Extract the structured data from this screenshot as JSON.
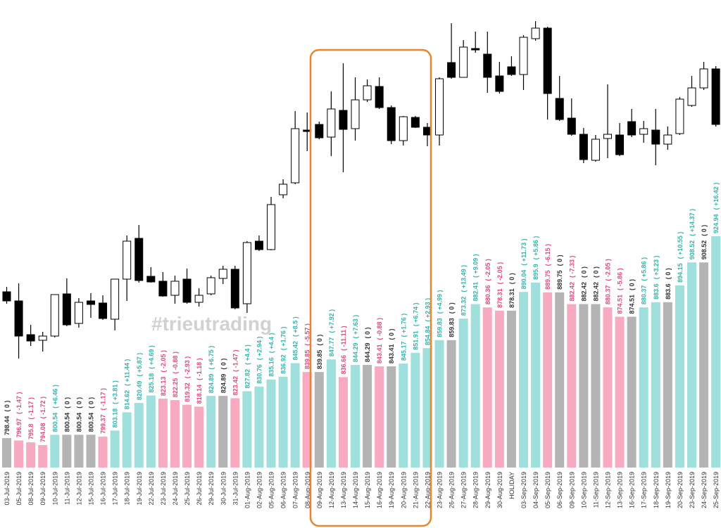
{
  "chart_data": [
    {
      "type": "candlestick",
      "ylim": [
        0,
        751
      ],
      "up_color": "#ffffff",
      "down_color": "#000000",
      "wick_color": "#000000",
      "open": [
        336,
        323,
        275,
        267,
        273,
        333,
        291,
        323,
        320,
        297,
        354,
        412,
        358,
        351,
        331,
        354,
        321,
        333,
        355,
        368,
        319,
        408,
        396,
        474,
        491,
        566,
        574,
        556,
        594,
        568,
        609,
        628,
        598,
        551,
        584,
        570,
        559,
        662,
        641,
        682,
        674,
        643,
        656,
        645,
        696,
        711,
        611,
        583,
        560,
        523,
        554,
        559,
        578,
        560,
        566,
        546,
        561,
        601,
        626,
        653
      ],
      "high": [
        343,
        348,
        289,
        279,
        332,
        355,
        327,
        334,
        331,
        354,
        416,
        431,
        371,
        364,
        359,
        369,
        341,
        359,
        373,
        373,
        408,
        416,
        471,
        496,
        593,
        591,
        578,
        621,
        661,
        641,
        638,
        641,
        601,
        586,
        586,
        576,
        641,
        718,
        694,
        706,
        706,
        663,
        671,
        701,
        721,
        713,
        643,
        611,
        569,
        559,
        631,
        576,
        596,
        579,
        596,
        571,
        613,
        643,
        663,
        657
      ],
      "low": [
        319,
        241,
        259,
        251,
        271,
        287,
        285,
        299,
        296,
        281,
        323,
        349,
        349,
        329,
        319,
        319,
        315,
        331,
        347,
        311,
        306,
        394,
        395,
        469,
        489,
        536,
        553,
        529,
        506,
        551,
        606,
        596,
        546,
        544,
        569,
        543,
        544,
        639,
        641,
        676,
        619,
        618,
        643,
        623,
        693,
        581,
        579,
        558,
        519,
        521,
        526,
        529,
        556,
        548,
        516,
        538,
        559,
        599,
        623,
        571
      ],
      "close": [
        323,
        273,
        266,
        273,
        332,
        289,
        321,
        318,
        298,
        354,
        408,
        352,
        350,
        330,
        351,
        321,
        331,
        356,
        368,
        313,
        406,
        396,
        460,
        489,
        568,
        564,
        555,
        596,
        567,
        609,
        629,
        598,
        551,
        585,
        570,
        559,
        639,
        641,
        684,
        680,
        641,
        621,
        645,
        698,
        711,
        618,
        581,
        560,
        524,
        553,
        560,
        531,
        559,
        568,
        546,
        559,
        610,
        626,
        653,
        574
      ]
    },
    {
      "type": "bar",
      "watermark": "#trieutrading",
      "ylim": [
        780,
        940
      ],
      "palette": {
        "up": "#9fe0dd",
        "down": "#f8abc0",
        "flat": "#b4b4b4"
      },
      "label_palette": {
        "up": "#36b3ac",
        "down": "#e14a78",
        "flat": "#333333"
      },
      "categories": [
        "03-Jul-2019",
        "05-Jul-2019",
        "08-Jul-2019",
        "09-Jul-2019",
        "10-Jul-2019",
        "11-Jul-2019",
        "12-Jul-2019",
        "15-Jul-2019",
        "16-Jul-2019",
        "17-Jul-2019",
        "18-Jul-2019",
        "19-Jul-2019",
        "22-Jul-2019",
        "23-Jul-2019",
        "24-Jul-2019",
        "25-Jul-2019",
        "26-Jul-2019",
        "29-Jul-2019",
        "30-Jul-2019",
        "31-Jul-2019",
        "01-Aug-2019",
        "02-Aug-2019",
        "05-Aug-2019",
        "06-Aug-2019",
        "07-Aug-2019",
        "08-Aug-2019",
        "09-Aug-2019",
        "12-Aug-2019",
        "13-Aug-2019",
        "14-Aug-2019",
        "15-Aug-2019",
        "16-Aug-2019",
        "19-Aug-2019",
        "20-Aug-2019",
        "21-Aug-2019",
        "22-Aug-2019",
        "23-Aug-2019",
        "26-Aug-2019",
        "27-Aug-2019",
        "28-Aug-2019",
        "29-Aug-2019",
        "30-Aug-2019",
        "HOLIDAY",
        "03-Sep-2019",
        "04-Sep-2019",
        "05-Sep-2019",
        "06-Sep-2019",
        "09-Sep-2019",
        "10-Sep-2019",
        "11-Sep-2019",
        "12-Sep-2019",
        "13-Sep-2019",
        "16-Sep-2019",
        "17-Sep-2019",
        "18-Sep-2019",
        "19-Sep-2019",
        "20-Sep-2019",
        "23-Sep-2019",
        "24-Sep-2019",
        "25-Sep-2019"
      ],
      "values": [
        798.44,
        796.97,
        795.8,
        794.08,
        800.54,
        800.54,
        800.54,
        800.54,
        799.37,
        803.18,
        814.62,
        820.49,
        825.18,
        823.13,
        822.25,
        819.32,
        818.14,
        824.89,
        824.89,
        823.42,
        827.82,
        830.76,
        835.16,
        836.92,
        845.42,
        839.85,
        839.85,
        847.77,
        836.66,
        844.29,
        844.29,
        843.41,
        843.41,
        845.17,
        851.91,
        854.84,
        859.83,
        859.83,
        873.32,
        882.41,
        880.36,
        878.31,
        878.31,
        890.04,
        895.9,
        889.75,
        889.75,
        882.42,
        882.42,
        882.42,
        880.37,
        874.51,
        874.51,
        880.37,
        883.6,
        883.6,
        894.15,
        908.52,
        908.52,
        924.94
      ],
      "changes": [
        0,
        -1.47,
        -1.17,
        -1.72,
        6.46,
        0,
        0,
        0,
        -1.17,
        3.81,
        11.44,
        5.87,
        4.69,
        -2.05,
        -0.88,
        -2.93,
        -1.18,
        6.75,
        0,
        -1.47,
        4.4,
        2.94,
        4.4,
        1.76,
        8.5,
        -5.57,
        0,
        7.92,
        -11.11,
        7.63,
        0,
        -0.88,
        0,
        1.76,
        6.74,
        2.93,
        4.99,
        0,
        13.49,
        9.09,
        -2.05,
        -2.05,
        0,
        11.73,
        5.86,
        -6.15,
        0,
        -7.33,
        0,
        0,
        -2.05,
        -5.86,
        0,
        5.86,
        3.23,
        0,
        10.55,
        14.37,
        0,
        16.42
      ],
      "change_labels": [
        "( 0 )",
        "( -1.47 )",
        "( -1.17 )",
        "( -1.72 )",
        "( +6.46 )",
        "( 0 )",
        "( 0 )",
        "( 0 )",
        "( -1.17 )",
        "( +3.81 )",
        "( +11.44 )",
        "( +5.87 )",
        "( +4.69 )",
        "( -2.05 )",
        "( -0.88 )",
        "( -2.93 )",
        "( -1.18 )",
        "( +6.75 )",
        "( 0 )",
        "( -1.47 )",
        "( +4.4 )",
        "( +2.94 )",
        "( +4.4 )",
        "( +1.76 )",
        "( +8.5 )",
        "( -5.57 )",
        "( 0 )",
        "( +7.92 )",
        "( -11.11 )",
        "( +7.63 )",
        "( 0 )",
        "( -0.88 )",
        "( 0 )",
        "( +1.76 )",
        "( +6.74 )",
        "( +2.93 )",
        "( +4.99 )",
        "( 0 )",
        "( +13.49 )",
        "( +9.09 )",
        "( -2.05 )",
        "( -2.05 )",
        "( 0 )",
        "( +11.73 )",
        "( +5.86 )",
        "( -6.15 )",
        "( 0 )",
        "( -7.33 )",
        "( 0 )",
        "( 0 )",
        "( -2.05 )",
        "( -5.86 )",
        "( 0 )",
        "( +5.86 )",
        "( +3.23 )",
        "( 0 )",
        "( +10.55 )",
        "( +14.37 )",
        "( 0 )",
        "( +16.42 )"
      ]
    }
  ]
}
